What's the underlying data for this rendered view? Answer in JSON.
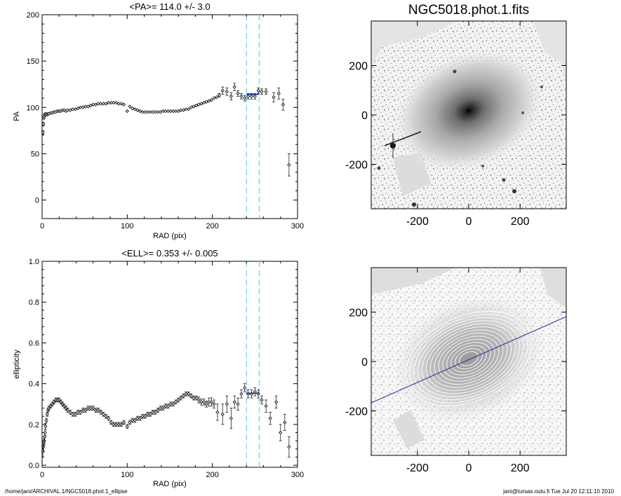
{
  "page": {
    "footer_left": "/home/jani/ARCHIVAL.1/NGC5018.phot.1_ellipse",
    "footer_right": "jani@tursas.oulu.fi  Tue Jul 20 12:11:10 2010"
  },
  "chart_data": [
    {
      "type": "scatter",
      "title": "<PA>= 114.0 +/-   3.0",
      "xlabel": "RAD (pix)",
      "ylabel": "PA",
      "xlim": [
        0,
        300
      ],
      "ylim": [
        -20,
        200
      ],
      "xticks": [
        0,
        100,
        200,
        300
      ],
      "yticks": [
        0,
        50,
        100,
        150,
        200
      ],
      "vlines": [
        240,
        255
      ],
      "mean_segment": {
        "x": [
          240,
          255
        ],
        "y": 114.0
      },
      "series": [
        {
          "x": [
            1,
            1.5,
            2,
            2.5,
            3,
            3.5,
            4,
            5,
            6,
            7,
            8,
            10,
            12,
            14,
            16,
            18,
            20,
            22,
            24,
            26,
            28,
            30,
            33,
            36,
            39,
            42,
            45,
            48,
            51,
            54,
            57,
            60,
            63,
            66,
            69,
            72,
            75,
            78,
            81,
            84,
            87,
            90,
            93,
            96,
            100,
            103,
            106,
            109,
            112,
            115,
            118,
            121,
            124,
            127,
            130,
            133,
            136,
            139,
            142,
            145,
            148,
            151,
            154,
            157,
            160,
            163,
            166,
            169,
            172,
            175,
            178,
            181,
            184,
            187,
            190,
            193,
            196,
            199,
            202,
            205,
            208
          ],
          "y": [
            73,
            82,
            88,
            90,
            92,
            93,
            92,
            93,
            92,
            93,
            93,
            94,
            94,
            95,
            95,
            96,
            96,
            96,
            97,
            97,
            96,
            97,
            97,
            98,
            98,
            99,
            100,
            100,
            101,
            101,
            102,
            103,
            103,
            104,
            104,
            104,
            104,
            105,
            105,
            105,
            105,
            104,
            104,
            103,
            96,
            101,
            99,
            98,
            97,
            96,
            95,
            95,
            95,
            95,
            95,
            95,
            95,
            95,
            96,
            96,
            96,
            96,
            96,
            96,
            96,
            97,
            97,
            98,
            98,
            100,
            101,
            102,
            103,
            104,
            105,
            106,
            107,
            108,
            110,
            111,
            113
          ],
          "err": [
            2,
            2,
            1.5,
            1.5,
            1.5,
            1,
            1,
            1,
            1,
            1,
            1,
            1,
            1,
            1,
            1,
            1,
            1,
            1,
            1,
            1,
            1,
            1,
            1,
            1,
            1,
            1,
            1,
            1,
            1,
            1,
            1,
            1,
            1,
            1,
            1,
            1,
            1,
            1,
            1,
            1,
            1,
            1,
            1,
            1,
            1,
            1,
            1,
            1,
            1,
            1,
            1,
            1,
            1,
            1,
            1,
            1,
            1,
            1,
            1,
            1,
            1,
            1,
            1,
            1,
            1,
            1,
            1,
            1,
            1,
            1,
            1,
            1,
            1,
            1,
            1,
            1,
            1,
            1,
            1.5,
            1.5,
            2
          ]
        },
        {
          "x": [
            212,
            217,
            222,
            226,
            230,
            234,
            238,
            242,
            246,
            250,
            254,
            258,
            263,
            272,
            278,
            283,
            290
          ],
          "y": [
            118,
            117,
            112,
            122,
            115,
            112,
            110,
            112,
            112,
            112,
            118,
            117,
            117,
            111,
            115,
            103,
            38
          ],
          "err": [
            4,
            4,
            4,
            4,
            3,
            3,
            3,
            3,
            3,
            3,
            3,
            3,
            3,
            5,
            6,
            6,
            12
          ]
        }
      ]
    },
    {
      "type": "scatter",
      "title": "<ELL>= 0.353 +/-  0.005",
      "xlabel": "RAD (pix)",
      "ylabel": "ellipticity",
      "xlim": [
        0,
        300
      ],
      "ylim": [
        -0.01,
        1.0
      ],
      "xticks": [
        0,
        100,
        200,
        300
      ],
      "yticks": [
        0.0,
        0.2,
        0.4,
        0.6,
        0.8,
        1.0
      ],
      "ytick_labels": [
        "0.0",
        "0.2",
        "0.4",
        "0.6",
        "0.8",
        "1.0"
      ],
      "vlines": [
        240,
        255
      ],
      "mean_segment": {
        "x": [
          240,
          255
        ],
        "y": 0.353
      },
      "series": [
        {
          "x": [
            1,
            1.5,
            2,
            2.5,
            3,
            3.5,
            4,
            5,
            6,
            7,
            8,
            10,
            12,
            14,
            16,
            18,
            20,
            22,
            24,
            26,
            28,
            30,
            33,
            36,
            39,
            42,
            45,
            48,
            51,
            54,
            57,
            60,
            63,
            66,
            69,
            72,
            75,
            78,
            81,
            84,
            87,
            90,
            93,
            96,
            100,
            103,
            106,
            109,
            112,
            115,
            118,
            121,
            124,
            127,
            130,
            133,
            136,
            139,
            142,
            145,
            148,
            151,
            154,
            157,
            160,
            163,
            166,
            169,
            172,
            175,
            178,
            181,
            184,
            187,
            190,
            193,
            196,
            199,
            202
          ],
          "y": [
            0.07,
            0.09,
            0.11,
            0.12,
            0.14,
            0.16,
            0.19,
            0.22,
            0.25,
            0.27,
            0.28,
            0.29,
            0.3,
            0.31,
            0.32,
            0.32,
            0.32,
            0.31,
            0.3,
            0.29,
            0.28,
            0.27,
            0.26,
            0.25,
            0.25,
            0.26,
            0.26,
            0.27,
            0.27,
            0.28,
            0.28,
            0.28,
            0.27,
            0.27,
            0.26,
            0.25,
            0.24,
            0.23,
            0.21,
            0.2,
            0.2,
            0.2,
            0.2,
            0.21,
            0.19,
            0.21,
            0.22,
            0.22,
            0.23,
            0.23,
            0.24,
            0.24,
            0.25,
            0.25,
            0.26,
            0.26,
            0.27,
            0.28,
            0.28,
            0.29,
            0.29,
            0.3,
            0.3,
            0.31,
            0.32,
            0.33,
            0.34,
            0.35,
            0.35,
            0.34,
            0.33,
            0.33,
            0.32,
            0.31,
            0.31,
            0.3,
            0.31,
            0.31,
            0.3
          ],
          "err": [
            0.03,
            0.025,
            0.02,
            0.02,
            0.02,
            0.015,
            0.015,
            0.01,
            0.01,
            0.01,
            0.01,
            0.01,
            0.01,
            0.01,
            0.01,
            0.01,
            0.01,
            0.01,
            0.01,
            0.01,
            0.01,
            0.01,
            0.01,
            0.01,
            0.01,
            0.01,
            0.01,
            0.01,
            0.01,
            0.01,
            0.01,
            0.01,
            0.01,
            0.01,
            0.01,
            0.01,
            0.01,
            0.01,
            0.01,
            0.01,
            0.01,
            0.01,
            0.01,
            0.01,
            0.01,
            0.01,
            0.01,
            0.01,
            0.01,
            0.01,
            0.01,
            0.01,
            0.01,
            0.01,
            0.01,
            0.01,
            0.01,
            0.01,
            0.01,
            0.01,
            0.01,
            0.01,
            0.01,
            0.01,
            0.01,
            0.01,
            0.01,
            0.01,
            0.01,
            0.01,
            0.01,
            0.01,
            0.015,
            0.015,
            0.015,
            0.015,
            0.02,
            0.02,
            0.02
          ]
        },
        {
          "x": [
            206,
            212,
            217,
            222,
            226,
            230,
            234,
            238,
            242,
            246,
            250,
            254,
            258,
            263,
            268,
            275,
            280,
            285,
            290
          ],
          "y": [
            0.26,
            0.25,
            0.3,
            0.23,
            0.31,
            0.3,
            0.35,
            0.38,
            0.35,
            0.35,
            0.36,
            0.35,
            0.32,
            0.29,
            0.23,
            0.31,
            0.16,
            0.21,
            0.09
          ],
          "err": [
            0.04,
            0.05,
            0.04,
            0.05,
            0.03,
            0.03,
            0.02,
            0.02,
            0.02,
            0.02,
            0.02,
            0.02,
            0.02,
            0.03,
            0.03,
            0.03,
            0.04,
            0.04,
            0.05
          ]
        }
      ]
    }
  ],
  "images": [
    {
      "title": "NGC5018.phot.1.fits",
      "xticks": [
        -200,
        0,
        200
      ],
      "yticks": [
        200,
        0,
        -200
      ],
      "xlim": [
        -380,
        380
      ],
      "ylim": [
        -380,
        380
      ]
    },
    {
      "title": "",
      "xticks": [
        -200,
        0,
        200
      ],
      "yticks": [
        200,
        0,
        -200
      ],
      "xlim": [
        -380,
        380
      ],
      "ylim": [
        -380,
        380
      ],
      "overlay_line_pa_deg": 114
    }
  ]
}
